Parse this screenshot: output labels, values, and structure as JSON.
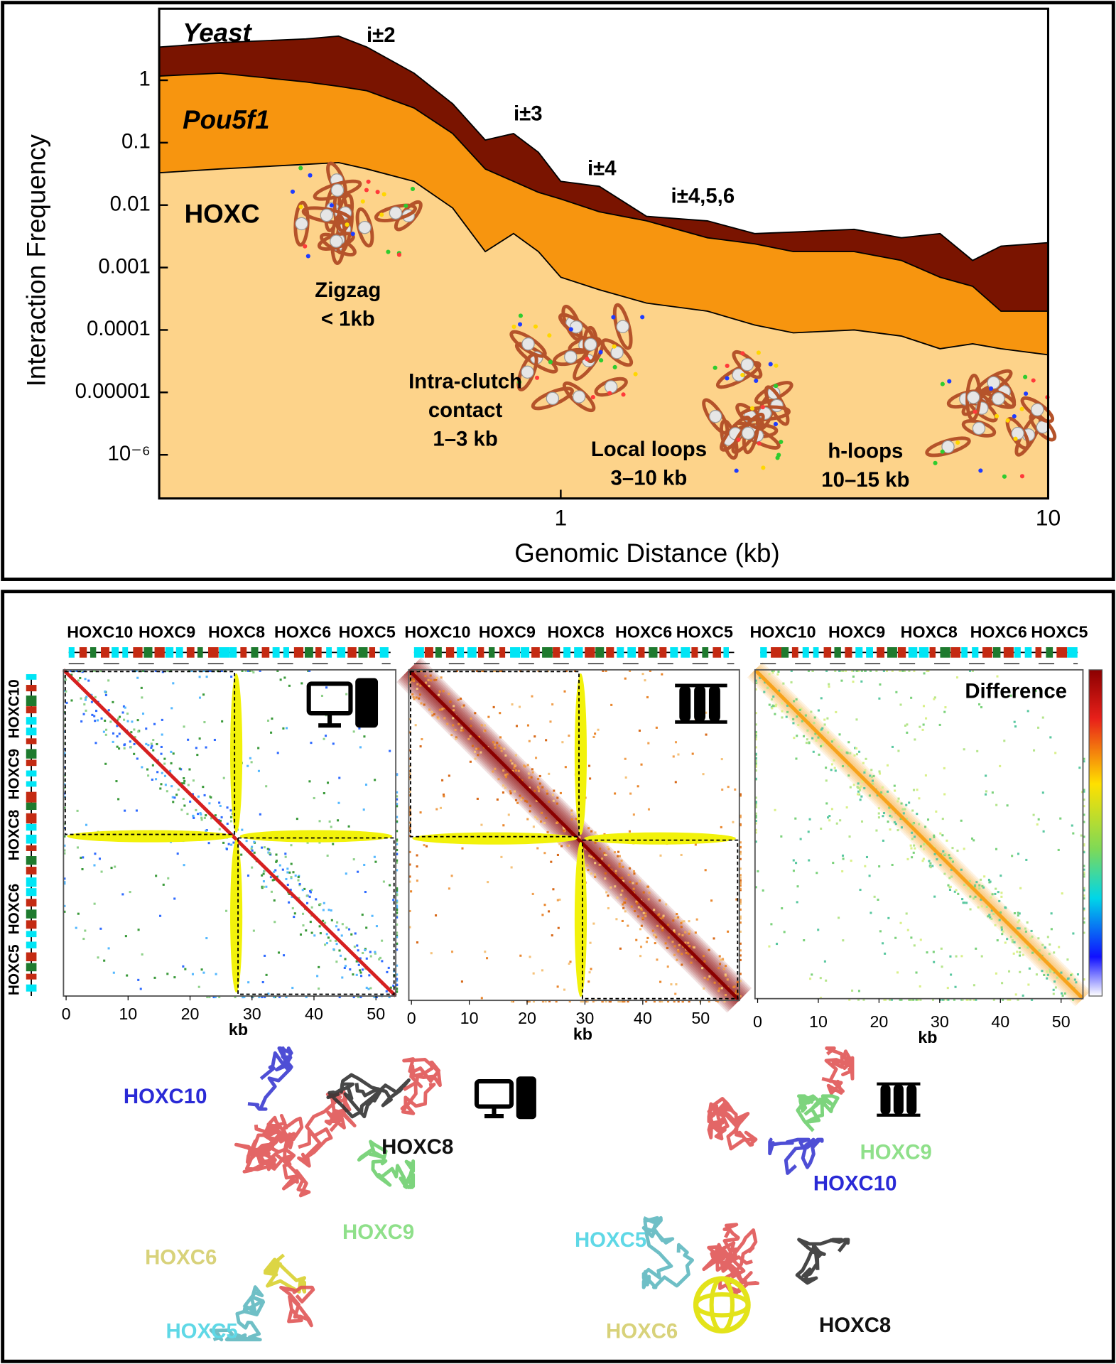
{
  "chart_data": {
    "type": "area",
    "xlabel": "Genomic Distance (kb)",
    "ylabel": "Interaction Frequency",
    "xscale": "log",
    "yscale": "log",
    "xlim": [
      0.15,
      10
    ],
    "ylim": [
      2e-07,
      14
    ],
    "xticks": [
      1,
      10
    ],
    "yticks": [
      1,
      0.1,
      0.01,
      0.001,
      0.0001,
      1e-05,
      {
        "value": 1e-06,
        "label": "10⁻⁶"
      }
    ],
    "x": [
      0.15,
      0.2,
      0.3,
      0.35,
      0.4,
      0.5,
      0.6,
      0.7,
      0.8,
      0.9,
      1.0,
      1.2,
      1.5,
      2,
      2.5,
      3,
      4,
      5,
      6,
      7,
      8,
      10
    ],
    "series": [
      {
        "name": "Yeast",
        "color": "#7a1400",
        "values": [
          3.4,
          4.0,
          4.6,
          5.1,
          3.4,
          1.3,
          0.42,
          0.11,
          0.14,
          0.07,
          0.024,
          0.02,
          0.0066,
          0.0056,
          0.0035,
          0.0037,
          0.0041,
          0.003,
          0.0035,
          0.0013,
          0.0022,
          0.0025
        ]
      },
      {
        "name": "Pou5f1",
        "color": "#f7950f",
        "values": [
          1.17,
          1.3,
          0.94,
          0.8,
          0.68,
          0.36,
          0.14,
          0.038,
          0.024,
          0.016,
          0.0125,
          0.0078,
          0.0056,
          0.003,
          0.0024,
          0.0018,
          0.0018,
          0.0013,
          0.0007,
          0.0005,
          0.0002,
          0.0002
        ]
      },
      {
        "name": "HOXC",
        "color": "#fdd38a",
        "values": [
          0.033,
          0.038,
          0.045,
          0.048,
          0.038,
          0.024,
          0.009,
          0.0018,
          0.0035,
          0.0018,
          0.0007,
          0.00044,
          0.00027,
          0.0002,
          0.00012,
          9e-05,
          0.0001,
          8e-05,
          5e-05,
          6e-05,
          5e-05,
          4e-05
        ]
      }
    ],
    "annotations": [
      [
        "i±2"
      ],
      [
        "i±3"
      ],
      [
        "i±4"
      ],
      [
        "i±4,5,6"
      ],
      [
        "Zigzag",
        "< 1kb"
      ],
      [
        "Intra-clutch",
        "contact",
        "1–3 kb"
      ],
      [
        "Local loops",
        "3–10 kb"
      ],
      [
        "h-loops",
        "10–15 kb"
      ]
    ]
  },
  "heatmaps": {
    "genes": [
      "HOXC10",
      "HOXC9",
      "HOXC8",
      "HOXC6",
      "HOXC5"
    ],
    "xlabel": "kb",
    "difference_label": "Difference",
    "panels": [
      {
        "xlim": [
          0,
          53.2
        ],
        "xticks": [
          0,
          10,
          20,
          30,
          40,
          50
        ]
      },
      {
        "xlim": [
          0,
          56.7
        ],
        "xticks": [
          0,
          10,
          20,
          30,
          40,
          50
        ]
      },
      {
        "xlim": [
          0,
          53.6
        ],
        "xticks": [
          0,
          10,
          20,
          30,
          40,
          50
        ]
      }
    ]
  },
  "structures": {
    "left": [
      {
        "label": "HOXC10",
        "color": "#2a2ad6"
      },
      {
        "label": "HOXC8",
        "color": "#111111"
      },
      {
        "label": "HOXC9",
        "color": "#8fe08a"
      },
      {
        "label": "HOXC6",
        "color": "#d8d27a"
      },
      {
        "label": "HOXC5",
        "color": "#5fd8e6"
      }
    ],
    "right": [
      {
        "label": "HOXC9",
        "color": "#8fe08a"
      },
      {
        "label": "HOXC10",
        "color": "#2a2ad6"
      },
      {
        "label": "HOXC5",
        "color": "#5fd8e6"
      },
      {
        "label": "HOXC6",
        "color": "#d8d27a"
      },
      {
        "label": "HOXC8",
        "color": "#111111"
      }
    ]
  }
}
